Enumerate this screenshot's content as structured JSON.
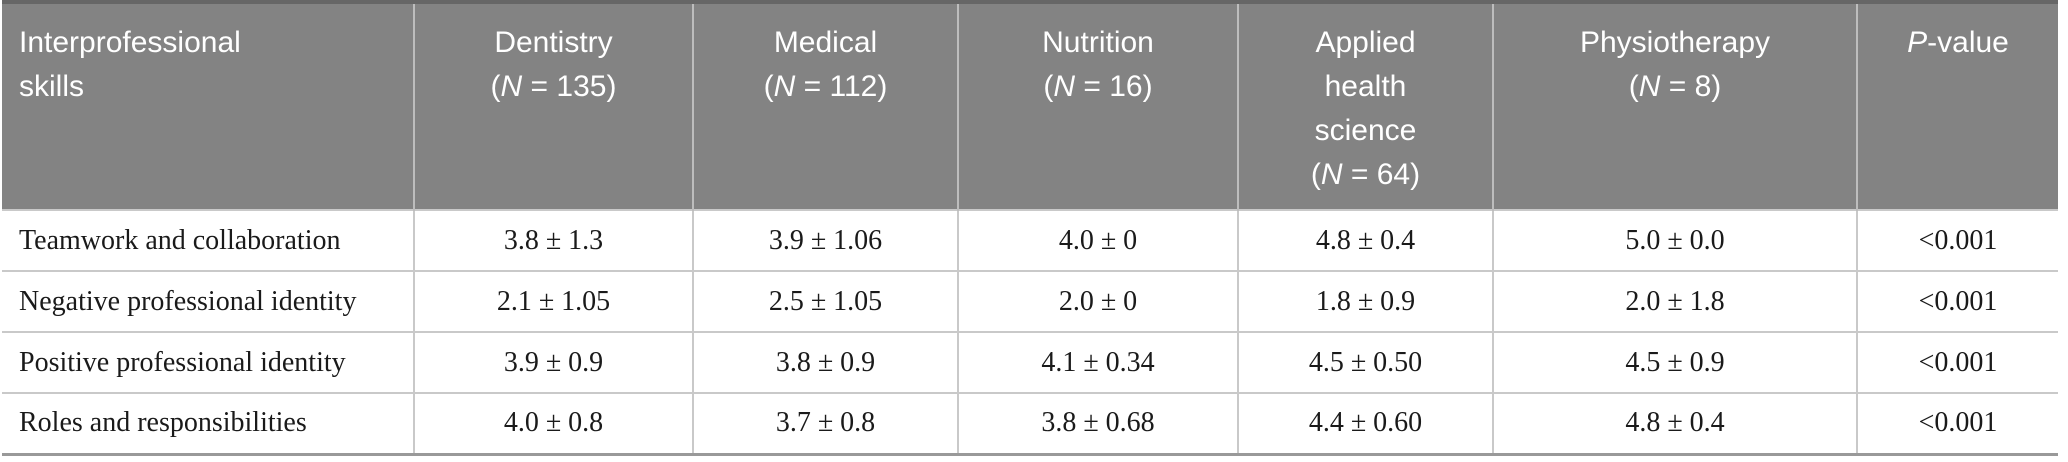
{
  "table": {
    "header": {
      "skills_label": "Interprofessional skills",
      "groups": [
        {
          "name": "Dentistry",
          "n_pre": "(",
          "n_italic": "N",
          "n_post": " = 135)"
        },
        {
          "name": "Medical",
          "n_pre": "(",
          "n_italic": "N",
          "n_post": " = 112)"
        },
        {
          "name": "Nutrition",
          "n_pre": "(",
          "n_italic": "N",
          "n_post": " = 16)"
        },
        {
          "name": "Applied health science",
          "n_pre": "(",
          "n_italic": "N",
          "n_post": " = 64)"
        },
        {
          "name": "Physiotherapy",
          "n_pre": "(",
          "n_italic": "N",
          "n_post": " = 8)"
        }
      ],
      "pvalue": {
        "italic": "P",
        "post": "-value"
      }
    },
    "rows": [
      {
        "label": "Teamwork and collaboration",
        "values": [
          "3.8 ± 1.3",
          "3.9 ± 1.06",
          "4.0 ± 0",
          "4.8 ± 0.4",
          "5.0 ± 0.0"
        ],
        "p": "<0.001"
      },
      {
        "label": "Negative professional identity",
        "values": [
          "2.1 ± 1.05",
          "2.5 ± 1.05",
          "2.0 ± 0",
          "1.8 ± 0.9",
          "2.0 ± 1.8"
        ],
        "p": "<0.001"
      },
      {
        "label": "Positive professional identity",
        "values": [
          "3.9 ± 0.9",
          "3.8 ± 0.9",
          "4.1 ± 0.34",
          "4.5 ± 0.50",
          "4.5 ± 0.9"
        ],
        "p": "<0.001"
      },
      {
        "label": "Roles and responsibilities",
        "values": [
          "4.0 ± 0.8",
          "3.7 ± 0.8",
          "3.8 ± 0.68",
          "4.4 ± 0.60",
          "4.8 ± 0.4"
        ],
        "p": "<0.001"
      }
    ],
    "colors": {
      "header_bg": "#838383",
      "header_text": "#ffffff",
      "body_text": "#1a1a1a",
      "grid_line": "#c9c9c9",
      "top_border": "#666666",
      "bottom_border": "#999999"
    }
  }
}
